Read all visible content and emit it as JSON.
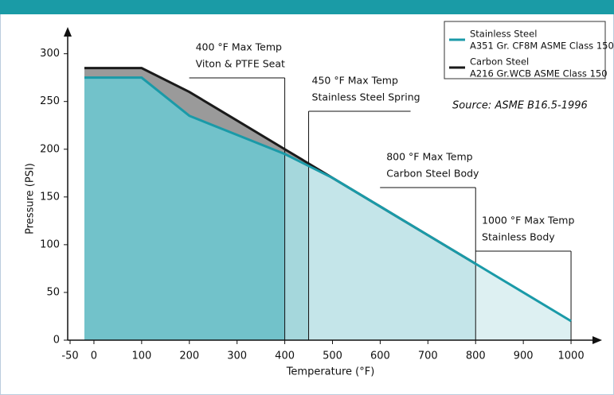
{
  "chart_data": {
    "type": "area",
    "x_label": "Temperature (°F)",
    "y_label": "Pressure (PSI)",
    "source": "Source:  ASME B16.5-1996",
    "x": [
      -20,
      100,
      200,
      300,
      400,
      500,
      600,
      700,
      800,
      900,
      1000
    ],
    "series": [
      {
        "name": "Stainless Steel",
        "spec": "A351 Gr. CF8M ASME Class 150",
        "color": "#1a9aa8",
        "values": [
          275,
          275,
          235,
          215,
          195,
          170,
          140,
          110,
          80,
          50,
          20
        ]
      },
      {
        "name": "Carbon Steel",
        "spec": "A216 Gr.WCB ASME Class 150",
        "color": "#1a1a1a",
        "values": [
          285,
          285,
          260,
          230,
          200,
          170,
          140,
          110,
          80,
          null,
          null
        ]
      }
    ],
    "difference_fill": "#9a9a9a",
    "annotations": [
      {
        "x": 400,
        "lines": [
          "400 °F Max Temp",
          "Viton & PTFE Seat"
        ],
        "side": "left",
        "fill": "#72c2ca"
      },
      {
        "x": 450,
        "lines": [
          "450 °F Max Temp",
          "Stainless Steel Spring"
        ],
        "side": "right",
        "fill": "#a5d7dc"
      },
      {
        "x": 800,
        "lines": [
          "800 °F Max Temp",
          "Carbon Steel Body"
        ],
        "side": "left",
        "fill": "#c4e5e9"
      },
      {
        "x": 1000,
        "lines": [
          "1000 °F Max Temp",
          "Stainless Body"
        ],
        "side": "left",
        "fill": "#ddf0f2"
      }
    ],
    "xlim": [
      -55,
      1055
    ],
    "ylim": [
      0,
      323
    ],
    "xticks": [
      -50,
      0,
      100,
      200,
      300,
      400,
      500,
      600,
      700,
      800,
      900,
      1000
    ],
    "yticks": [
      0,
      50,
      100,
      150,
      200,
      250,
      300
    ],
    "accent": "#1a9ba6"
  }
}
